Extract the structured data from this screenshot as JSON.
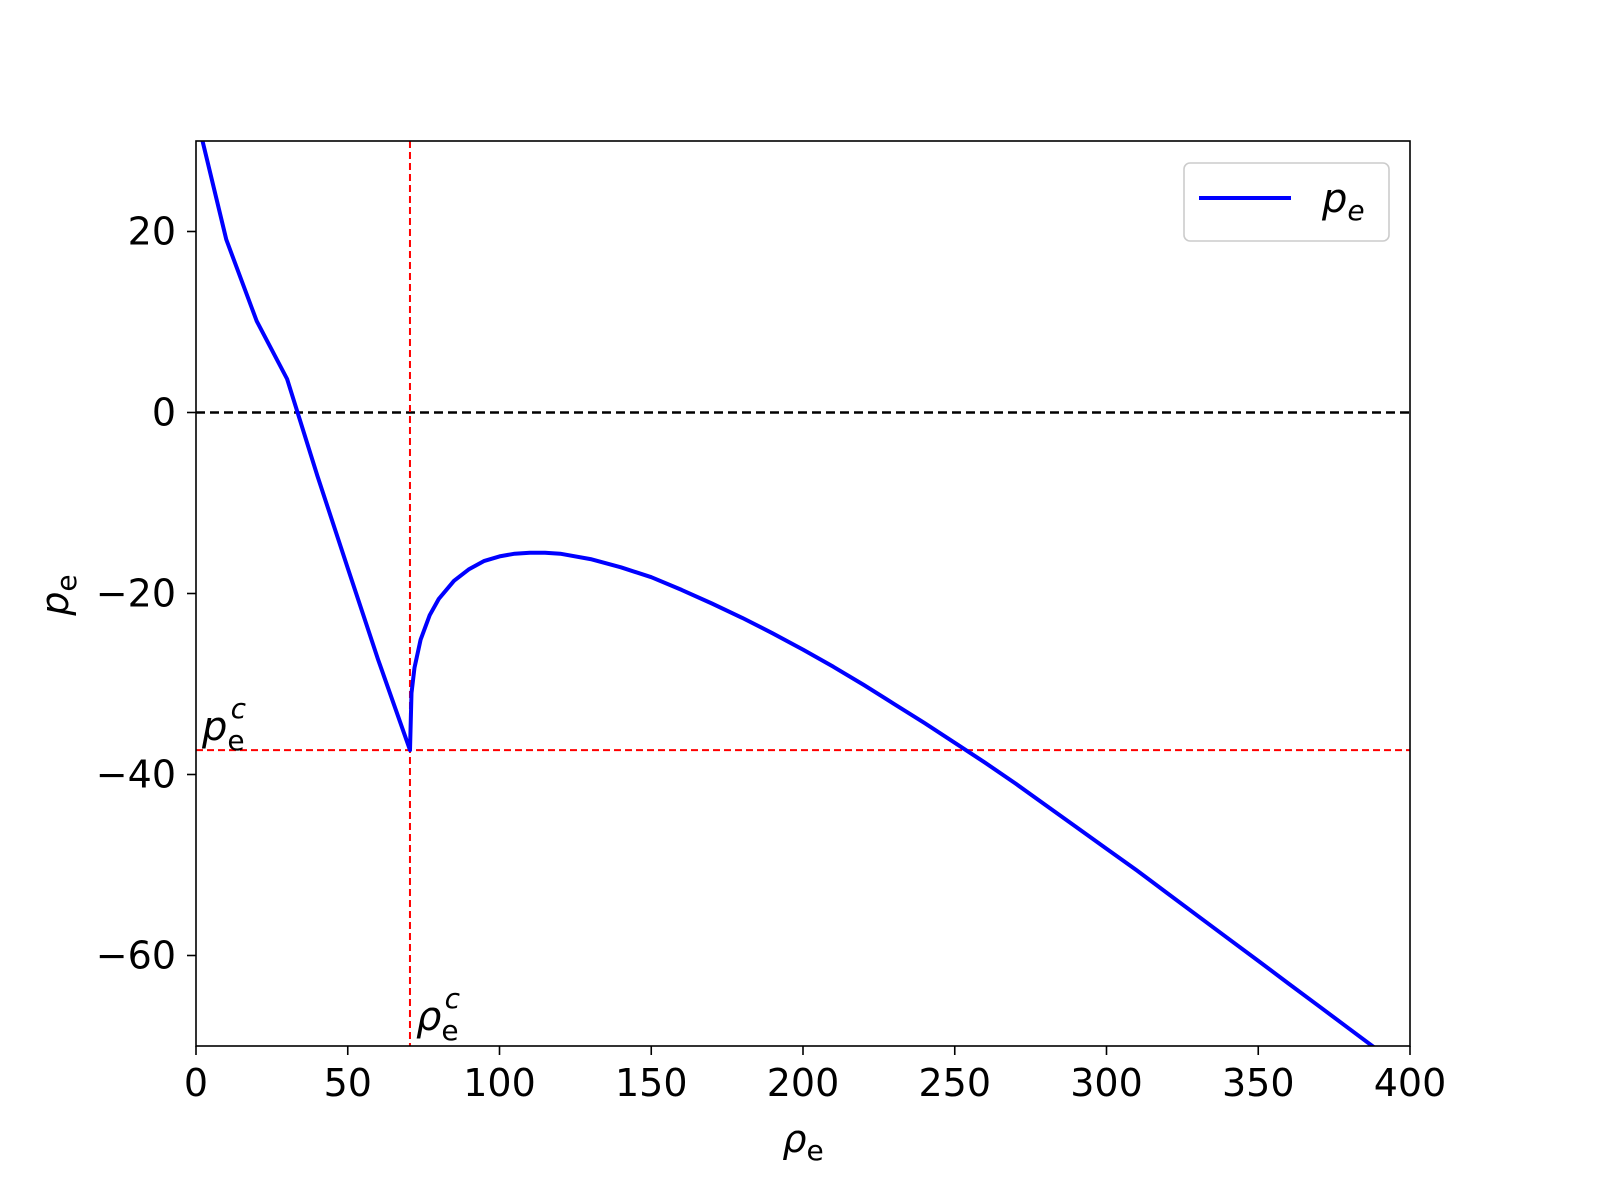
{
  "chart_data": {
    "type": "line",
    "xlabel_main": "ρ",
    "xlabel_sub": "e",
    "ylabel_main": "p",
    "ylabel_sub": "e",
    "xlim": [
      0,
      400
    ],
    "ylim": [
      -70,
      30
    ],
    "xticks": [
      0,
      50,
      100,
      150,
      200,
      250,
      300,
      350,
      400
    ],
    "xtick_labels": [
      "0",
      "50",
      "100",
      "150",
      "200",
      "250",
      "300",
      "350",
      "400"
    ],
    "yticks": [
      -60,
      -40,
      -20,
      0,
      20
    ],
    "ytick_labels": [
      "−60",
      "−40",
      "−20",
      "0",
      "20"
    ],
    "grid": false,
    "legend_position": "top-right",
    "series": [
      {
        "name_main": "p",
        "name_sub": "e",
        "color": "#0000ff",
        "x": [
          0,
          10,
          20,
          30,
          40,
          50,
          60,
          70.5,
          71,
          72,
          74,
          77,
          80,
          85,
          90,
          95,
          100,
          105,
          110,
          115,
          120,
          130,
          140,
          150,
          160,
          170,
          180,
          190,
          200,
          210,
          220,
          230,
          240,
          250,
          260,
          270,
          280,
          290,
          300,
          310,
          320,
          330,
          340,
          350,
          360,
          370,
          380,
          390,
          400
        ],
        "y": [
          33,
          19.1,
          10.1,
          3.7,
          -7,
          -17.2,
          -27.3,
          -37.3,
          -31.0,
          -28.2,
          -25.1,
          -22.4,
          -20.6,
          -18.6,
          -17.3,
          -16.4,
          -15.9,
          -15.6,
          -15.5,
          -15.5,
          -15.6,
          -16.2,
          -17.1,
          -18.2,
          -19.6,
          -21.1,
          -22.7,
          -24.4,
          -26.2,
          -28.1,
          -30.1,
          -32.2,
          -34.3,
          -36.5,
          -38.7,
          -41.0,
          -43.4,
          -45.8,
          -48.2,
          -50.6,
          -53.1,
          -55.6,
          -58.1,
          -60.6,
          -63.1,
          -65.6,
          -68.1,
          -70.6,
          -70.6
        ]
      }
    ],
    "reference_lines": [
      {
        "orientation": "horizontal",
        "value": 0,
        "color": "#000000",
        "style": "dashed"
      },
      {
        "orientation": "horizontal",
        "value": -37.3,
        "color": "#ff0000",
        "style": "dashed"
      },
      {
        "orientation": "vertical",
        "value": 70.5,
        "color": "#ff0000",
        "style": "dashed"
      }
    ],
    "annotations": [
      {
        "id": "pc",
        "main": "p",
        "sub": "e",
        "sup": "c"
      },
      {
        "id": "rhoc",
        "main": "ρ",
        "sub": "e",
        "sup": "c"
      }
    ]
  }
}
